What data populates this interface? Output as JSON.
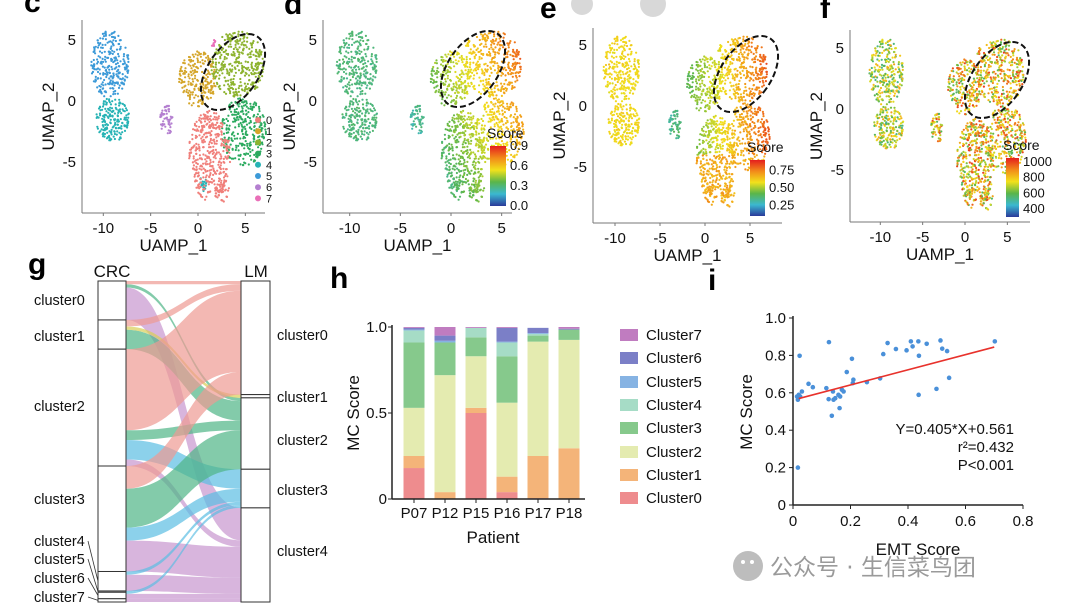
{
  "panel_labels": {
    "c": "c",
    "d": "d",
    "e": "e",
    "f": "f",
    "g": "g",
    "h": "h",
    "i": "i"
  },
  "watermark": {
    "text": "公众号 · 生信菜鸟团",
    "icon": "wechat-icon"
  },
  "chart_data": [
    {
      "panel": "c",
      "type": "scatter",
      "xlabel": "UAMP_1",
      "ylabel": "UMAP_2",
      "xticks": [
        "-10",
        "-5",
        "0",
        "5"
      ],
      "yticks": [
        "5",
        "0",
        "-5"
      ],
      "legend": {
        "position": "right",
        "entries": [
          "0",
          "1",
          "2",
          "3",
          "4",
          "5",
          "6",
          "7"
        ],
        "colors": [
          "#F07F7A",
          "#D4A52A",
          "#8DB32F",
          "#2BAA5F",
          "#27B3B5",
          "#3C9AD8",
          "#B47FD0",
          "#E96FB8"
        ]
      },
      "annotation": "dashed ellipse around upper-right (cluster 2) region"
    },
    {
      "panel": "d",
      "type": "scatter",
      "xlabel": "UAMP_1",
      "ylabel": "UMAP_2",
      "xticks": [
        "-10",
        "-5",
        "0",
        "5"
      ],
      "yticks": [
        "5",
        "0",
        "-5"
      ],
      "colorbar": {
        "title": "Score",
        "ticks": [
          "0.9",
          "0.6",
          "0.3",
          "0.0"
        ],
        "range": [
          0,
          0.9
        ]
      }
    },
    {
      "panel": "e",
      "type": "scatter",
      "xlabel": "UAMP_1",
      "ylabel": "UMAP_2",
      "xticks": [
        "-10",
        "-5",
        "0",
        "5"
      ],
      "yticks": [
        "5",
        "0",
        "-5"
      ],
      "colorbar": {
        "title": "Score",
        "ticks": [
          "0.75",
          "0.50",
          "0.25"
        ],
        "range": [
          0.1,
          0.9
        ]
      }
    },
    {
      "panel": "f",
      "type": "scatter",
      "xlabel": "UAMP_1",
      "ylabel": "UMAP_2",
      "xticks": [
        "-10",
        "-5",
        "0",
        "5"
      ],
      "yticks": [
        "5",
        "0",
        "-5"
      ],
      "colorbar": {
        "title": "Score",
        "ticks": [
          "1000",
          "800",
          "600",
          "400"
        ],
        "range": [
          300,
          1050
        ]
      }
    },
    {
      "panel": "g",
      "type": "alluvial",
      "left_title": "CRC",
      "right_title": "LM",
      "left_nodes": [
        "cluster0",
        "cluster1",
        "cluster2",
        "cluster3",
        "cluster4",
        "cluster5",
        "cluster6",
        "cluster7"
      ],
      "right_nodes": [
        "cluster0",
        "cluster1",
        "cluster2",
        "cluster3",
        "cluster4"
      ],
      "right_colors": [
        "#EE9A93",
        "#D9CF55",
        "#4FB586",
        "#5BBDE3",
        "#C895CF"
      ],
      "flows": [
        {
          "from": "cluster0",
          "to": "cluster4",
          "value": 0.1
        },
        {
          "from": "cluster0",
          "to": "cluster2",
          "value": 0.01
        },
        {
          "from": "cluster0",
          "to": "cluster0",
          "value": 0.01
        },
        {
          "from": "cluster1",
          "to": "cluster2",
          "value": 0.06
        },
        {
          "from": "cluster1",
          "to": "cluster0",
          "value": 0.02
        },
        {
          "from": "cluster1",
          "to": "cluster1",
          "value": 0.01
        },
        {
          "from": "cluster2",
          "to": "cluster0",
          "value": 0.25
        },
        {
          "from": "cluster2",
          "to": "cluster2",
          "value": 0.03
        },
        {
          "from": "cluster2",
          "to": "cluster3",
          "value": 0.06
        },
        {
          "from": "cluster2",
          "to": "cluster4",
          "value": 0.02
        },
        {
          "from": "cluster3",
          "to": "cluster0",
          "value": 0.07
        },
        {
          "from": "cluster3",
          "to": "cluster2",
          "value": 0.12
        },
        {
          "from": "cluster3",
          "to": "cluster3",
          "value": 0.04
        },
        {
          "from": "cluster3",
          "to": "cluster4",
          "value": 0.095
        },
        {
          "from": "cluster4",
          "to": "cluster4",
          "value": 0.05
        },
        {
          "from": "cluster4",
          "to": "cluster3",
          "value": 0.01
        },
        {
          "from": "cluster5",
          "to": "cluster3",
          "value": 0.004
        },
        {
          "from": "cluster6",
          "to": "cluster4",
          "value": 0.015
        },
        {
          "from": "cluster6",
          "to": "cluster3",
          "value": 0.005
        },
        {
          "from": "cluster7",
          "to": "cluster4",
          "value": 0.01
        }
      ]
    },
    {
      "panel": "h",
      "type": "bar",
      "stacked": true,
      "xlabel": "Patient",
      "ylabel": "MC  Score",
      "ylim": [
        0,
        1.0
      ],
      "yticks": [
        "0",
        "0.5",
        "1.0"
      ],
      "categories": [
        "P07",
        "P12",
        "P15",
        "P16",
        "P17",
        "P18"
      ],
      "legend_position": "right",
      "series": [
        {
          "name": "Cluster0",
          "color": "#EE8C8E",
          "values": [
            0.18,
            0.0,
            0.5,
            0.04,
            0.005,
            0.0
          ]
        },
        {
          "name": "Cluster1",
          "color": "#F4B479",
          "values": [
            0.07,
            0.04,
            0.03,
            0.09,
            0.245,
            0.295
          ]
        },
        {
          "name": "Cluster2",
          "color": "#E4EBB0",
          "values": [
            0.28,
            0.68,
            0.3,
            0.43,
            0.665,
            0.63
          ]
        },
        {
          "name": "Cluster3",
          "color": "#86C98C",
          "values": [
            0.38,
            0.19,
            0.11,
            0.27,
            0.035,
            0.06
          ]
        },
        {
          "name": "Cluster4",
          "color": "#A6DCC6",
          "values": [
            0.07,
            0.0,
            0.055,
            0.08,
            0.01,
            0.0
          ]
        },
        {
          "name": "Cluster5",
          "color": "#86B3E3",
          "values": [
            0.005,
            0.01,
            0.0,
            0.005,
            0.005,
            0.0
          ]
        },
        {
          "name": "Cluster6",
          "color": "#7B7FC7",
          "values": [
            0.01,
            0.03,
            0.0,
            0.08,
            0.03,
            0.005
          ]
        },
        {
          "name": "Cluster7",
          "color": "#C07CC0",
          "values": [
            0.005,
            0.05,
            0.005,
            0.005,
            0.0,
            0.01
          ]
        }
      ]
    },
    {
      "panel": "i",
      "type": "scatter",
      "xlabel": "EMT Score",
      "ylabel": "MC   Score",
      "xlim": [
        0,
        0.8
      ],
      "ylim": [
        0,
        1.0
      ],
      "xticks": [
        "0",
        "0.2",
        "0.4",
        "0.6",
        "0.8"
      ],
      "yticks": [
        "0",
        "0.2",
        "0.4",
        "0.6",
        "0.8",
        "1.0"
      ],
      "point_color": "#4A90D9",
      "fit_color": "#E8322C",
      "fit": {
        "slope": 0.405,
        "intercept": 0.561,
        "x_range": [
          0.02,
          0.7
        ]
      },
      "annotations": [
        "Y=0.405*X+0.561",
        "r²=0.432",
        "P<0.001"
      ],
      "points": [
        [
          0.02,
          0.589
        ],
        [
          0.014,
          0.58
        ],
        [
          0.017,
          0.563
        ],
        [
          0.025,
          0.58
        ],
        [
          0.031,
          0.607
        ],
        [
          0.023,
          0.798
        ],
        [
          0.017,
          0.2
        ],
        [
          0.054,
          0.648
        ],
        [
          0.069,
          0.63
        ],
        [
          0.116,
          0.625
        ],
        [
          0.125,
          0.871
        ],
        [
          0.124,
          0.566
        ],
        [
          0.139,
          0.607
        ],
        [
          0.135,
          0.477
        ],
        [
          0.141,
          0.563
        ],
        [
          0.147,
          0.571
        ],
        [
          0.158,
          0.589
        ],
        [
          0.162,
          0.518
        ],
        [
          0.164,
          0.58
        ],
        [
          0.17,
          0.616
        ],
        [
          0.176,
          0.607
        ],
        [
          0.187,
          0.711
        ],
        [
          0.205,
          0.782
        ],
        [
          0.208,
          0.652
        ],
        [
          0.21,
          0.67
        ],
        [
          0.257,
          0.657
        ],
        [
          0.303,
          0.677
        ],
        [
          0.314,
          0.807
        ],
        [
          0.329,
          0.866
        ],
        [
          0.358,
          0.834
        ],
        [
          0.395,
          0.827
        ],
        [
          0.41,
          0.875
        ],
        [
          0.416,
          0.848
        ],
        [
          0.436,
          0.875
        ],
        [
          0.438,
          0.798
        ],
        [
          0.437,
          0.589
        ],
        [
          0.465,
          0.862
        ],
        [
          0.499,
          0.621
        ],
        [
          0.513,
          0.88
        ],
        [
          0.519,
          0.836
        ],
        [
          0.536,
          0.823
        ],
        [
          0.543,
          0.68
        ],
        [
          0.702,
          0.875
        ]
      ]
    }
  ]
}
